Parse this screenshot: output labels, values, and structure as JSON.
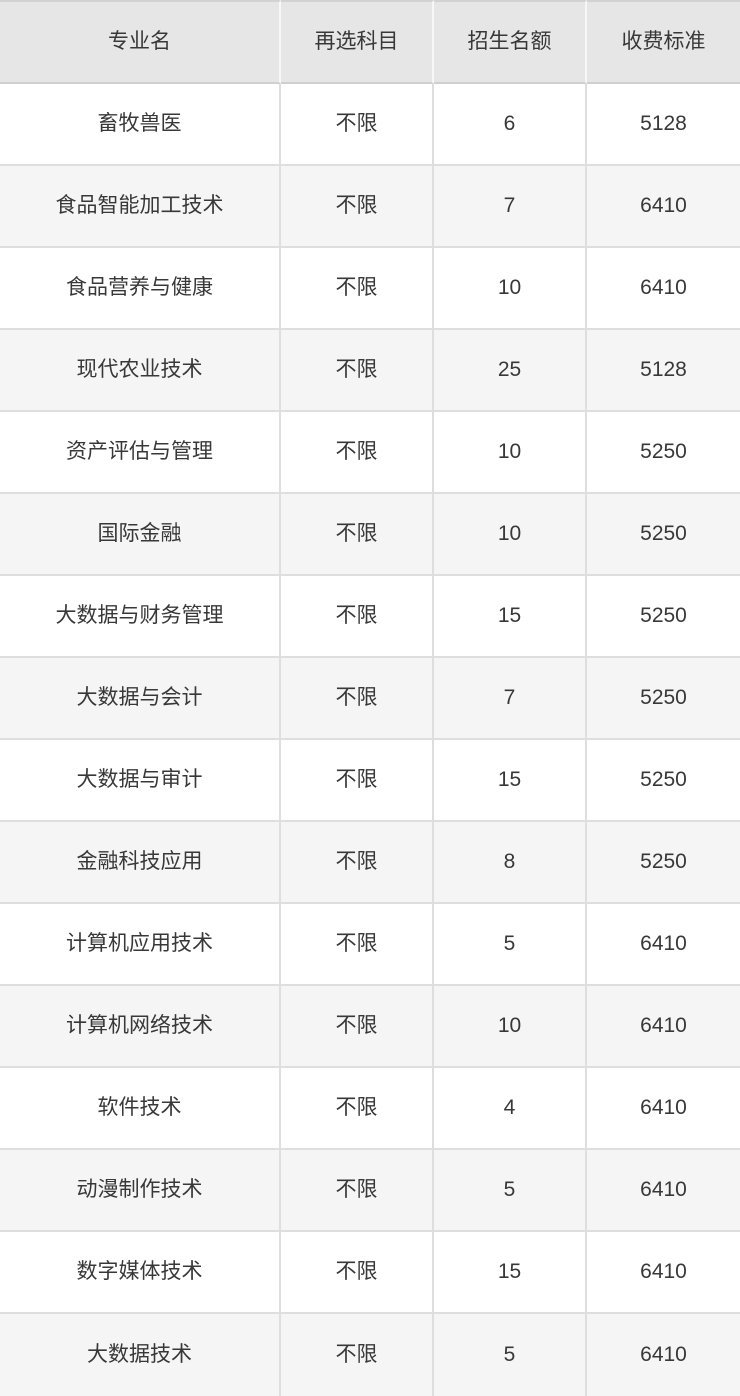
{
  "page": {
    "background": "#ffffff"
  },
  "colors": {
    "header-bg": "#e6e6e6",
    "header-sep": "#f7f7f7",
    "header-top": "#d2d2d2",
    "header-bottom": "#d0d0d0",
    "row-border": "#dedede",
    "row-alt-bg": "#f5f5f5",
    "row-bg": "#ffffff",
    "edge": "#e3e3e3",
    "text": "#383838"
  },
  "chart_data": {
    "type": "table",
    "columns": [
      "专业名",
      "再选科目",
      "招生名额",
      "收费标准"
    ],
    "rows": [
      [
        "畜牧兽医",
        "不限",
        6,
        5128
      ],
      [
        "食品智能加工技术",
        "不限",
        7,
        6410
      ],
      [
        "食品营养与健康",
        "不限",
        10,
        6410
      ],
      [
        "现代农业技术",
        "不限",
        25,
        5128
      ],
      [
        "资产评估与管理",
        "不限",
        10,
        5250
      ],
      [
        "国际金融",
        "不限",
        10,
        5250
      ],
      [
        "大数据与财务管理",
        "不限",
        15,
        5250
      ],
      [
        "大数据与会计",
        "不限",
        7,
        5250
      ],
      [
        "大数据与审计",
        "不限",
        15,
        5250
      ],
      [
        "金融科技应用",
        "不限",
        8,
        5250
      ],
      [
        "计算机应用技术",
        "不限",
        5,
        6410
      ],
      [
        "计算机网络技术",
        "不限",
        10,
        6410
      ],
      [
        "软件技术",
        "不限",
        4,
        6410
      ],
      [
        "动漫制作技术",
        "不限",
        5,
        6410
      ],
      [
        "数字媒体技术",
        "不限",
        15,
        6410
      ],
      [
        "大数据技术",
        "不限",
        5,
        6410
      ]
    ]
  }
}
